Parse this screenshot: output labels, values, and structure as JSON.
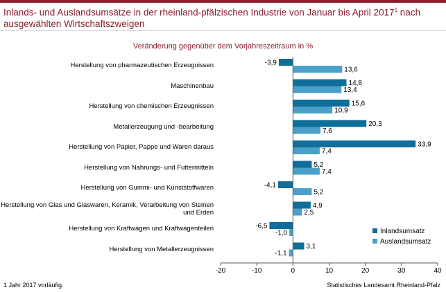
{
  "title": "Inlands- und Auslandsumsätze in der rheinland-pfälzischen Industrie von Januar bis April 2017",
  "title_sup": "1",
  "title_suffix": " nach ausgewählten Wirtschaftszweigen",
  "footnote": "1 Jahr 2017 vorläufig.",
  "source": "Statistisches Landesamt Rheinland-Pfalz",
  "colors": {
    "accent": "#8c1d2c",
    "inland": "#0f6e9a",
    "ausland": "#4aa0c9"
  },
  "chart_data": {
    "type": "bar",
    "orientation": "horizontal",
    "title": "Veränderung gegenüber dem Vorjahreszeitraum in %",
    "categories": [
      "Herstellung von pharmazeutischen Erzeugnissen",
      "Maschinenbau",
      "Herstellung von chemischen Erzeugnissen",
      "Metallerzeugung und -bearbeitung",
      "Herstellung von Papier, Pappe und Waren daraus",
      "Herstellung von Nahrungs- und Futtermitteln",
      "Herstellung von Gummi- und Kunststoffwaren",
      "Herstellung von Glas und Glaswaren, Keramik, Verarbeitung von Steinen und Erden",
      "Herstellung von Kraftwagen und Kraftwagenteilen",
      "Herstellung von Metallerzeugnissen"
    ],
    "series": [
      {
        "name": "Inlandsumsatz",
        "values": [
          -3.9,
          14.8,
          15.6,
          20.3,
          33.9,
          5.2,
          -4.1,
          4.9,
          -6.5,
          3.1
        ],
        "labels": [
          "-3,9",
          "14,8",
          "15,6",
          "20,3",
          "33,9",
          "5,2",
          "-4,1",
          "4,9",
          "-6,5",
          "3,1"
        ]
      },
      {
        "name": "Auslandsumsatz",
        "values": [
          13.6,
          13.4,
          10.9,
          7.6,
          7.4,
          7.4,
          5.2,
          2.5,
          -1.0,
          -1.1
        ],
        "labels": [
          "13,6",
          "13,4",
          "10,9",
          "7,6",
          "7,4",
          "7,4",
          "5,2",
          "2,5",
          "-1,0",
          "-1,1"
        ]
      }
    ],
    "xlim": [
      -20,
      40
    ],
    "xticks": [
      "-20",
      "-10",
      "0",
      "10",
      "20",
      "30",
      "40"
    ],
    "xtick_values": [
      -20,
      -10,
      0,
      10,
      20,
      30,
      40
    ],
    "grid": false,
    "legend_position": "bottom-right"
  }
}
